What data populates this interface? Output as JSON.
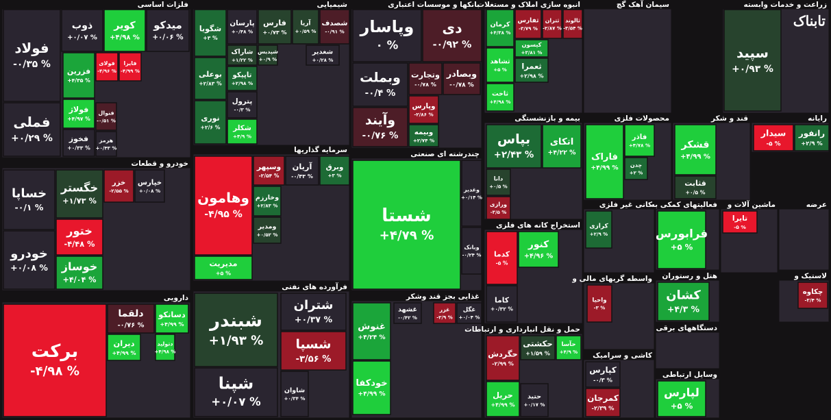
{
  "chart_data": {
    "type": "treemap",
    "logo": "تابناک",
    "sectors": [
      {
        "name": "فلزات اساسی",
        "items": [
          "فولاد",
          "فملی",
          "ذوب",
          "کویر",
          "میدکو",
          "فزرین",
          "فولاژ",
          "فخوز",
          "فولای",
          "فایرا",
          "فنوال",
          "هرمز"
        ],
        "values": [
          -0.35,
          0.29,
          0.07,
          4.98,
          0.06,
          4.35,
          4.97,
          0.33,
          -4.96,
          -4.99,
          -0.51,
          0.43
        ],
        "value_labels": [
          "-۰/۳۵ %",
          "+۰/۲۹ %",
          "+۰/۰۷ %",
          "+۴/۹۸ %",
          "+۰/۰۶ %",
          "+۴/۳۵ %",
          "+۴/۹۷ %",
          "+۰/۳۳ %",
          "-۴/۹۶ %",
          "-۴/۹۹ %",
          "-۰/۵۱ %",
          "+۰/۴۳ %"
        ]
      },
      {
        "name": "شیمیایی",
        "items": [
          "شگویا",
          "بوعلی",
          "نوری",
          "پارسان",
          "فارس",
          "آریا",
          "شصدف",
          "شاراک",
          "شپدیس",
          "شغدیر",
          "تاپیکو",
          "پترول",
          "شکلر"
        ],
        "values": [
          3,
          2.83,
          2.6,
          0.48,
          0.73,
          0.59,
          -0.91,
          1.22,
          0.9,
          0.28,
          2.98,
          -0.3,
          4.9
        ],
        "value_labels": [
          "+۳ %",
          "+۲/۸۳ %",
          "+۲/۶ %",
          "+۰/۴۸ %",
          "+۰/۷۳ %",
          "+۰/۵۹ %",
          "-۰/۹۱ %",
          "+۱/۲۲ %",
          "+۰/۹ %",
          "+۰/۲۸ %",
          "+۲/۹۸ %",
          "-۰/۳ %",
          "+۴/۹ %"
        ]
      },
      {
        "name": "بانکها و موسسات اعتباری",
        "items": [
          "وپاسار",
          "دی",
          "وبملت",
          "وتجارت",
          "وبصادر",
          "وآیند",
          "وپارس",
          "وبیمه"
        ],
        "values": [
          0,
          -0.92,
          -0.4,
          -0.78,
          -0.78,
          -0.76,
          -2.86,
          2.74
        ],
        "value_labels": [
          "۰ %",
          "-۰/۹۲ %",
          "-۰/۴ %",
          "-۰/۷۸ %",
          "-۰/۷۸ %",
          "-۰/۷۶ %",
          "-۲/۸۶ %",
          "+۲/۷۴ %"
        ]
      },
      {
        "name": "انبوه سازی املاک و مستغلات",
        "items": [
          "کرمان",
          "ثفارس",
          "ثتران",
          "ثالوند",
          "کیسون",
          "ثشاهد",
          "ثعمرا",
          "ثاخت"
        ],
        "values": [
          4.38,
          -3.79,
          -2.87,
          -3.54,
          3.81,
          5,
          2.98,
          4.98
        ],
        "value_labels": [
          "+۴/۳۸ %",
          "-۳/۷۹ %",
          "-۲/۸۷ %",
          "-۳/۵۴ %",
          "+۳/۸۱ %",
          "+۵ %",
          "+۲/۹۸ %",
          "+۴/۹۸ %"
        ]
      },
      {
        "name": "سیمان آهک گچ",
        "items": [],
        "values": [],
        "value_labels": []
      },
      {
        "name": "زراعت و خدمات وابسته",
        "items": [
          "سپید"
        ],
        "values": [
          0.93
        ],
        "value_labels": [
          "+۰/۹۳ %"
        ]
      },
      {
        "name": "خودرو و قطعات",
        "items": [
          "خساپا",
          "خودرو",
          "خگستر",
          "خزر",
          "خپارس",
          "ختور",
          "خوساز"
        ],
        "values": [
          -0.1,
          0.08,
          1.73,
          -2.55,
          0.08,
          -4.48,
          4.04
        ],
        "value_labels": [
          "-۰/۱ %",
          "+۰/۰۸ %",
          "+۱/۷۳ %",
          "-۲/۵۵ %",
          "+۰/۰۸ %",
          "-۴/۴۸ %",
          "+۴/۰۴ %"
        ]
      },
      {
        "name": "سرمایه گذاریها",
        "items": [
          "وهامون",
          "مدیریت",
          "وسپهر",
          "آریان",
          "وبرق",
          "وخارزم",
          "ومدیر"
        ],
        "values": [
          -4.95,
          5,
          -2.54,
          -0.43,
          3,
          2.83,
          0.52
        ],
        "value_labels": [
          "-۴/۹۵ %",
          "+۵ %",
          "-۲/۵۴ %",
          "-۰/۴۳ %",
          "+۳ %",
          "+۲/۸۳ %",
          "+۰/۵۲ %"
        ]
      },
      {
        "name": "چندرشته ای صنعتی",
        "items": [
          "شستا",
          "وغدیر",
          "وبانک"
        ],
        "values": [
          4.79,
          0.14,
          -0.24
        ],
        "value_labels": [
          "+۴/۷۹ %",
          "+۰/۱۴ %",
          "-۰/۲۴ %"
        ]
      },
      {
        "name": "بیمه و بازنشستگی",
        "items": [
          "بپاس",
          "اتکای",
          "دانا",
          "ورازی"
        ],
        "values": [
          2.43,
          4.22,
          0.5,
          -3.5
        ],
        "value_labels": [
          "+۲/۴۳ %",
          "+۴/۲۲ %",
          "+۰/۵ %",
          "-۳/۵ %"
        ]
      },
      {
        "name": "محصولات فلزی",
        "items": [
          "فاراک",
          "فاذر",
          "چدن"
        ],
        "values": [
          4.99,
          4.78,
          2
        ],
        "value_labels": [
          "+۴/۹۹ %",
          "+۴/۷۸ %",
          "+۲ %"
        ]
      },
      {
        "name": "قند و شکر",
        "items": [
          "قشکر",
          "قثابت"
        ],
        "values": [
          4.99,
          0.5
        ],
        "value_labels": [
          "+۴/۹۹ %",
          "+۰/۵ %"
        ]
      },
      {
        "name": "رایانه",
        "items": [
          "سیدار",
          "رانفور"
        ],
        "values": [
          -5,
          2.9
        ],
        "value_labels": [
          "-۵ %",
          "+۲/۹ %"
        ]
      },
      {
        "name": "استخراج کانه های فلزی",
        "items": [
          "کدما",
          "کنور",
          "کاما"
        ],
        "values": [
          -5,
          4.96,
          0.32
        ],
        "value_labels": [
          "-۵ %",
          "+۴/۹۶ %",
          "+۰/۳۲ %"
        ]
      },
      {
        "name": "کانی غیر فلزی",
        "items": [
          "کرازی"
        ],
        "values": [
          2.9
        ],
        "value_labels": [
          "+۲/۹ %"
        ]
      },
      {
        "name": "فعالیتهای کمکی به",
        "items": [
          "فرابورس"
        ],
        "values": [
          5
        ],
        "value_labels": [
          "+۵ %"
        ]
      },
      {
        "name": "ماشین آلات و",
        "items": [
          "تایرا"
        ],
        "values": [
          -5
        ],
        "value_labels": [
          "-۵ %"
        ]
      },
      {
        "name": "عرضه",
        "items": [],
        "values": [],
        "value_labels": []
      },
      {
        "name": "دارویی",
        "items": [
          "برکت",
          "دلقما",
          "دسانکو",
          "دیران",
          "دتولید"
        ],
        "values": [
          -4.98,
          -0.76,
          4.99,
          4.99,
          4.98
        ],
        "value_labels": [
          "-۴/۹۸ %",
          "-۰/۷۶ %",
          "+۴/۹۹ %",
          "+۴/۹۹ %",
          "+۴/۹۸ %"
        ]
      },
      {
        "name": "فرآورده های نفتی",
        "items": [
          "شبندر",
          "شپنا",
          "شتران",
          "شسپا",
          "شاوان"
        ],
        "values": [
          1.93,
          0.07,
          0.37,
          -3.56,
          0.34
        ],
        "value_labels": [
          "+۱/۹۳ %",
          "+۰/۰۷ %",
          "+۰/۳۷ %",
          "-۳/۵۶ %",
          "+۰/۳۴ %"
        ]
      },
      {
        "name": "غذایی بجز قند وشکر",
        "items": [
          "غنوش",
          "خودکفا",
          "غشهد",
          "غزر",
          "غگل"
        ],
        "values": [
          4.24,
          4.99,
          -0.42,
          -2.9,
          0.04
        ],
        "value_labels": [
          "+۴/۲۴ %",
          "+۴/۹۹ %",
          "-۰/۴۲ %",
          "-۲/۹ %",
          "+۰/۰۴ %"
        ]
      },
      {
        "name": "حمل و نقل انبارداری و ارتباطات",
        "items": [
          "حکشتی",
          "حآسا",
          "حگردش",
          "حریل",
          "حتید"
        ],
        "values": [
          1.59,
          4.9,
          -2.99,
          4.99,
          0.17
        ],
        "value_labels": [
          "+۱/۵۹ %",
          "+۴/۹ %",
          "-۲/۹۹ %",
          "+۴/۹۹ %",
          "+۰/۱۷ %"
        ]
      },
      {
        "name": "واسطه گریهای مالی و",
        "items": [
          "واحیا"
        ],
        "values": [
          -3
        ],
        "value_labels": [
          "-۳ %"
        ]
      },
      {
        "name": "هتل و رستوران",
        "items": [
          "کشان"
        ],
        "values": [
          4.3
        ],
        "value_labels": [
          "+۴/۳ %"
        ]
      },
      {
        "name": "کاشی و سرامیک",
        "items": [
          "کپارس",
          "کمرجان"
        ],
        "values": [
          -0.3,
          -2.39
        ],
        "value_labels": [
          "-۰/۳ %",
          "-۲/۳۹ %"
        ]
      },
      {
        "name": "وسایل ارتباطی",
        "items": [
          "لپارس"
        ],
        "values": [
          5
        ],
        "value_labels": [
          "+۵ %"
        ]
      },
      {
        "name": "لاستیک و",
        "items": [
          "چکاوه"
        ],
        "values": [
          -3.4
        ],
        "value_labels": [
          "-۳/۴ %"
        ]
      },
      {
        "name": "دستگاههای برقی",
        "items": [],
        "values": [],
        "value_labels": []
      }
    ]
  }
}
